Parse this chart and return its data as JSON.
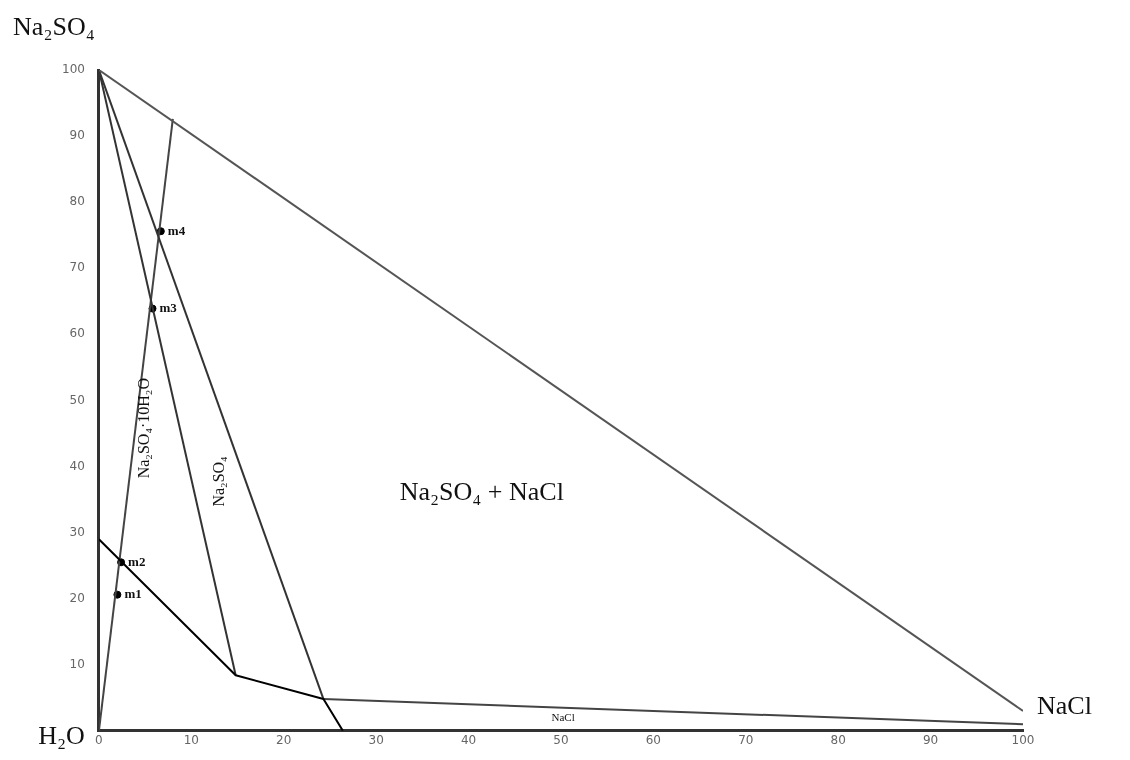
{
  "chart_data": {
    "type": "line",
    "xlim": [
      0,
      100
    ],
    "ylim": [
      0,
      100
    ],
    "xticks": [
      0,
      10,
      20,
      30,
      40,
      50,
      60,
      70,
      80,
      90,
      100
    ],
    "yticks": [
      10,
      20,
      30,
      40,
      50,
      60,
      70,
      80,
      90,
      100
    ],
    "grid": false,
    "marker": "none",
    "line_style": "solid",
    "series": [
      {
        "color": "#555555",
        "x": [
          0,
          100
        ],
        "values": [
          100,
          3
        ]
      },
      {
        "color": "#000000",
        "x": [
          0,
          14.8,
          24.3,
          26.4
        ],
        "values": [
          29,
          8.4,
          4.8,
          0
        ]
      },
      {
        "color": "#333333",
        "x": [
          0,
          14.8
        ],
        "values": [
          100,
          8.4
        ]
      },
      {
        "color": "#333333",
        "x": [
          0,
          24.3
        ],
        "values": [
          100,
          4.8
        ]
      },
      {
        "color": "#444444",
        "x": [
          24.3,
          100
        ],
        "values": [
          4.8,
          1
        ]
      },
      {
        "color": "#444444",
        "x": [
          0,
          8
        ],
        "values": [
          0,
          92.6
        ]
      },
      {
        "type": "scatter",
        "color": "#000000",
        "marker": "circle",
        "x": [
          2,
          2.4,
          5.8,
          6.7
        ],
        "values": [
          20.6,
          25.5,
          63.9,
          75.6
        ],
        "value_labels": [
          "m1",
          "m2",
          "m3",
          "m4"
        ]
      }
    ],
    "annotations": [
      "Na₂SO₄",
      "H₂O",
      "NaCl",
      "Na₂SO₄·10H₂O",
      "Na₂SO₄",
      "Na₂SO₄ + NaCl",
      "NaCl"
    ]
  }
}
